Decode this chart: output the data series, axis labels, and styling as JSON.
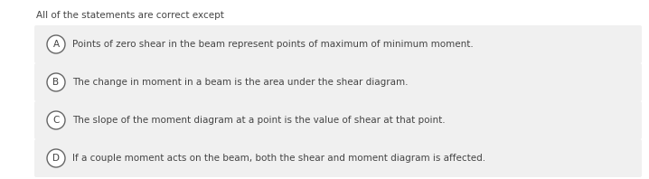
{
  "title": "All of the statements are correct except",
  "title_fontsize": 7.5,
  "title_color": "#444444",
  "bg_color": "#ffffff",
  "option_bg_color": "#f0f0f0",
  "options": [
    {
      "label": "A",
      "text": "Points of zero shear in the beam represent points of maximum of minimum moment."
    },
    {
      "label": "B",
      "text": "The change in moment in a beam is the area under the shear diagram."
    },
    {
      "label": "C",
      "text": "The slope of the moment diagram at a point is the value of shear at that point."
    },
    {
      "label": "D",
      "text": "If a couple moment acts on the beam, both the shear and moment diagram is affected."
    }
  ],
  "option_fontsize": 7.5,
  "option_text_color": "#444444",
  "circle_edge_color": "#666666",
  "circle_face_color": "#ffffff",
  "label_fontsize": 7.5,
  "fig_width": 7.18,
  "fig_height": 1.98,
  "dpi": 100
}
